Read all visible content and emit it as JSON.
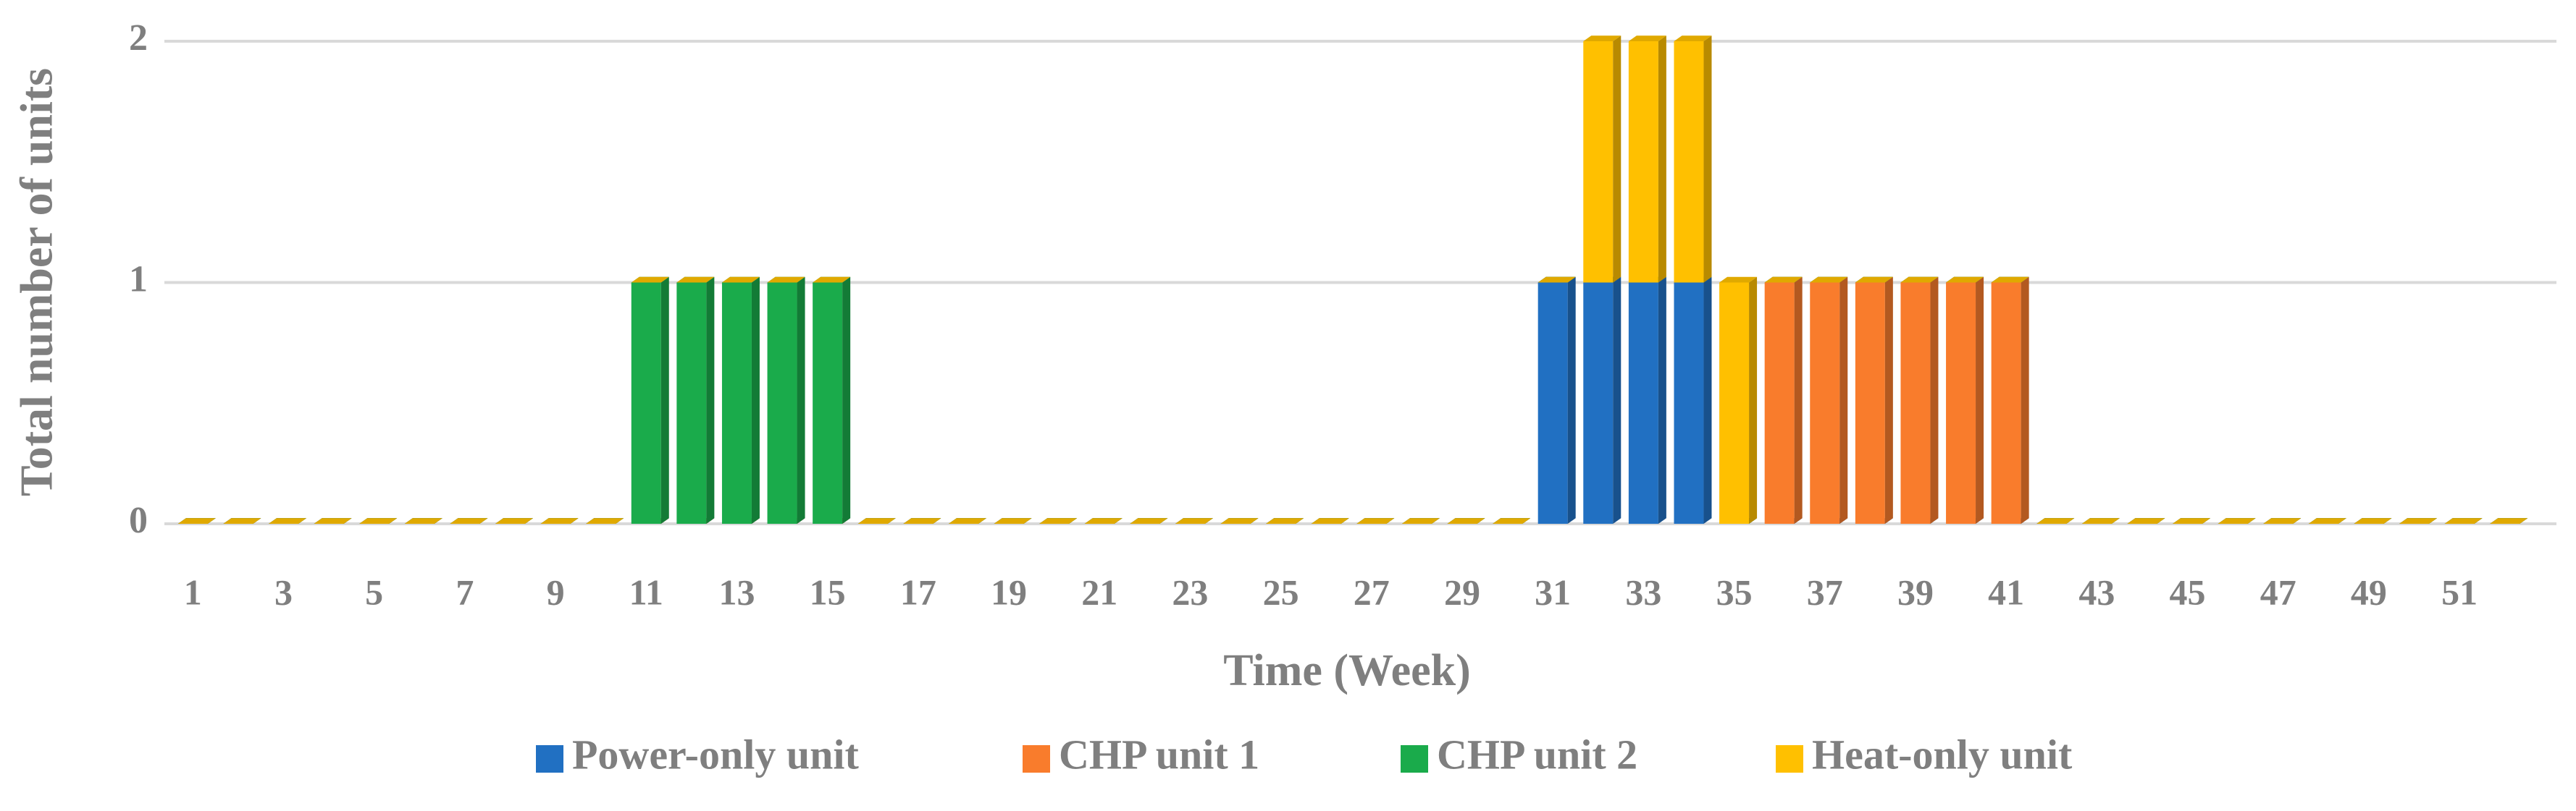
{
  "chart_data": {
    "type": "stacked_bar",
    "y_label": "Total number of units",
    "x_label": "Time (Week)",
    "categories": [
      "1",
      null,
      "3",
      null,
      "5",
      null,
      "7",
      null,
      "9",
      null,
      "11",
      null,
      "13",
      null,
      "15",
      null,
      "17",
      null,
      "19",
      null,
      "21",
      null,
      "23",
      null,
      "25",
      null,
      "27",
      null,
      "29",
      null,
      "31",
      null,
      "33",
      null,
      "35",
      null,
      "37",
      null,
      "39",
      null,
      "41",
      null,
      "43",
      null,
      "45",
      null,
      "47",
      null,
      "49",
      null,
      "51",
      null
    ],
    "series": [
      {
        "name": "Power-only unit",
        "color": "#2170c2",
        "values": [
          0,
          0,
          0,
          0,
          0,
          0,
          0,
          0,
          0,
          0,
          0,
          0,
          0,
          0,
          0,
          0,
          0,
          0,
          0,
          0,
          0,
          0,
          0,
          0,
          0,
          0,
          0,
          0,
          0,
          0,
          1,
          1,
          1,
          1,
          0,
          0,
          0,
          0,
          0,
          0,
          0,
          0,
          0,
          0,
          0,
          0,
          0,
          0,
          0,
          0,
          0,
          0
        ]
      },
      {
        "name": "CHP unit 1",
        "color": "#f97c2c",
        "values": [
          0,
          0,
          0,
          0,
          0,
          0,
          0,
          0,
          0,
          0,
          0,
          0,
          0,
          0,
          0,
          0,
          0,
          0,
          0,
          0,
          0,
          0,
          0,
          0,
          0,
          0,
          0,
          0,
          0,
          0,
          0,
          0,
          0,
          0,
          0,
          1,
          1,
          1,
          1,
          1,
          1,
          0,
          0,
          0,
          0,
          0,
          0,
          0,
          0,
          0,
          0,
          0
        ]
      },
      {
        "name": "CHP unit 2",
        "color": "#1aab4b",
        "values": [
          0,
          0,
          0,
          0,
          0,
          0,
          0,
          0,
          0,
          0,
          1,
          1,
          1,
          1,
          1,
          0,
          0,
          0,
          0,
          0,
          0,
          0,
          0,
          0,
          0,
          0,
          0,
          0,
          0,
          0,
          0,
          0,
          0,
          0,
          0,
          0,
          0,
          0,
          0,
          0,
          0,
          0,
          0,
          0,
          0,
          0,
          0,
          0,
          0,
          0,
          0,
          0
        ]
      },
      {
        "name": "Heat-only unit",
        "color": "#ffc000",
        "values": [
          0,
          0,
          0,
          0,
          0,
          0,
          0,
          0,
          0,
          0,
          0,
          0,
          0,
          0,
          0,
          0,
          0,
          0,
          0,
          0,
          0,
          0,
          0,
          0,
          0,
          0,
          0,
          0,
          0,
          0,
          0,
          1,
          1,
          1,
          1,
          0,
          0,
          0,
          0,
          0,
          0,
          0,
          0,
          0,
          0,
          0,
          0,
          0,
          0,
          0,
          0,
          0
        ]
      }
    ],
    "ylim": [
      0,
      2
    ],
    "yticks": [
      0,
      1,
      2
    ],
    "grid": true,
    "legend": "bottom"
  }
}
